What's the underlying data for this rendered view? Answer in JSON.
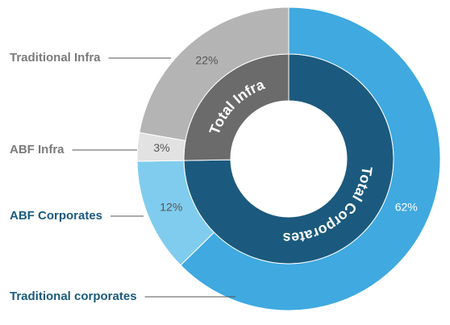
{
  "chart_data": {
    "type": "nested-donut",
    "rings": [
      {
        "categories": [
          "Total Corporates",
          "Total Infra"
        ],
        "values": [
          74,
          25
        ],
        "colors": [
          "#1b5a7e",
          "#6b6b6b"
        ]
      },
      {
        "categories": [
          "Traditional corporates",
          "ABF Corporates",
          "ABF Infra",
          "Traditional Infra"
        ],
        "values": [
          62,
          12,
          3,
          22
        ],
        "value_labels": [
          "62%",
          "12%",
          "3%",
          "22%"
        ],
        "colors": [
          "#3fa9e0",
          "#80ccee",
          "#e2e2e2",
          "#b4b4b4"
        ],
        "label_colors": [
          "#1b5a7e",
          "#1b5a7e",
          "#7a7a7a",
          "#7a7a7a"
        ],
        "value_label_colors": [
          "#ffffff",
          "#555555",
          "#555555",
          "#555555"
        ]
      }
    ]
  }
}
